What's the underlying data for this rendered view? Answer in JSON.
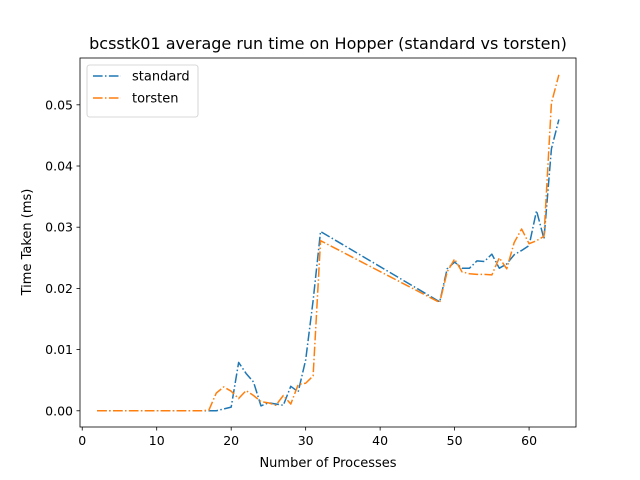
{
  "chart_data": {
    "type": "line",
    "title": "bcsstk01 average run time on Hopper (standard vs torsten)",
    "xlabel": "Number of Processes",
    "ylabel": "Time Taken (ms)",
    "xlim": [
      -0.3,
      66.3
    ],
    "ylim": [
      -0.00265,
      0.05765
    ],
    "xticks": [
      0,
      10,
      20,
      30,
      40,
      50,
      60
    ],
    "yticks": [
      0.0,
      0.01,
      0.02,
      0.03,
      0.04,
      0.05
    ],
    "ytick_labels": [
      "0.00",
      "0.01",
      "0.02",
      "0.03",
      "0.04",
      "0.05"
    ],
    "legend_position": "upper-left",
    "grid": false,
    "series": [
      {
        "name": "standard",
        "color": "#1f77b4",
        "x": [
          2,
          4,
          6,
          8,
          10,
          12,
          14,
          16,
          18,
          20,
          21,
          22,
          23,
          24,
          25,
          26,
          27,
          28,
          29,
          30,
          31,
          32,
          48,
          49,
          50,
          51,
          52,
          53,
          54,
          55,
          56,
          57,
          58,
          59,
          60,
          61,
          62,
          63,
          64
        ],
        "y": [
          0.0,
          0.0,
          0.0,
          0.0,
          0.0,
          0.0,
          0.0,
          0.0,
          0.0,
          0.0006,
          0.0079,
          0.0061,
          0.0047,
          0.0008,
          0.0013,
          0.0011,
          0.0009,
          0.004,
          0.0031,
          0.0083,
          0.018,
          0.0293,
          0.0178,
          0.0232,
          0.0243,
          0.0233,
          0.0233,
          0.0245,
          0.0244,
          0.0256,
          0.0233,
          0.024,
          0.0255,
          0.0262,
          0.027,
          0.0327,
          0.0281,
          0.0428,
          0.0476
        ]
      },
      {
        "name": "torsten",
        "color": "#ff7f0e",
        "x": [
          2,
          4,
          6,
          8,
          10,
          12,
          14,
          16,
          17,
          18,
          19,
          20,
          21,
          22,
          23,
          24,
          25,
          26,
          27,
          28,
          29,
          30,
          31,
          32,
          48,
          49,
          50,
          51,
          52,
          53,
          54,
          55,
          56,
          57,
          58,
          59,
          60,
          61,
          62,
          63,
          64
        ],
        "y": [
          0.0,
          0.0,
          0.0,
          0.0,
          0.0,
          0.0,
          0.0,
          0.0,
          0.0001,
          0.0029,
          0.0039,
          0.0032,
          0.002,
          0.0033,
          0.0025,
          0.0015,
          0.0013,
          0.0009,
          0.0025,
          0.0011,
          0.0043,
          0.0045,
          0.0057,
          0.0278,
          0.0177,
          0.0227,
          0.0248,
          0.0227,
          0.0224,
          0.0223,
          0.0223,
          0.0222,
          0.025,
          0.0232,
          0.0275,
          0.0297,
          0.0273,
          0.0278,
          0.0285,
          0.0503,
          0.0549
        ]
      }
    ]
  }
}
